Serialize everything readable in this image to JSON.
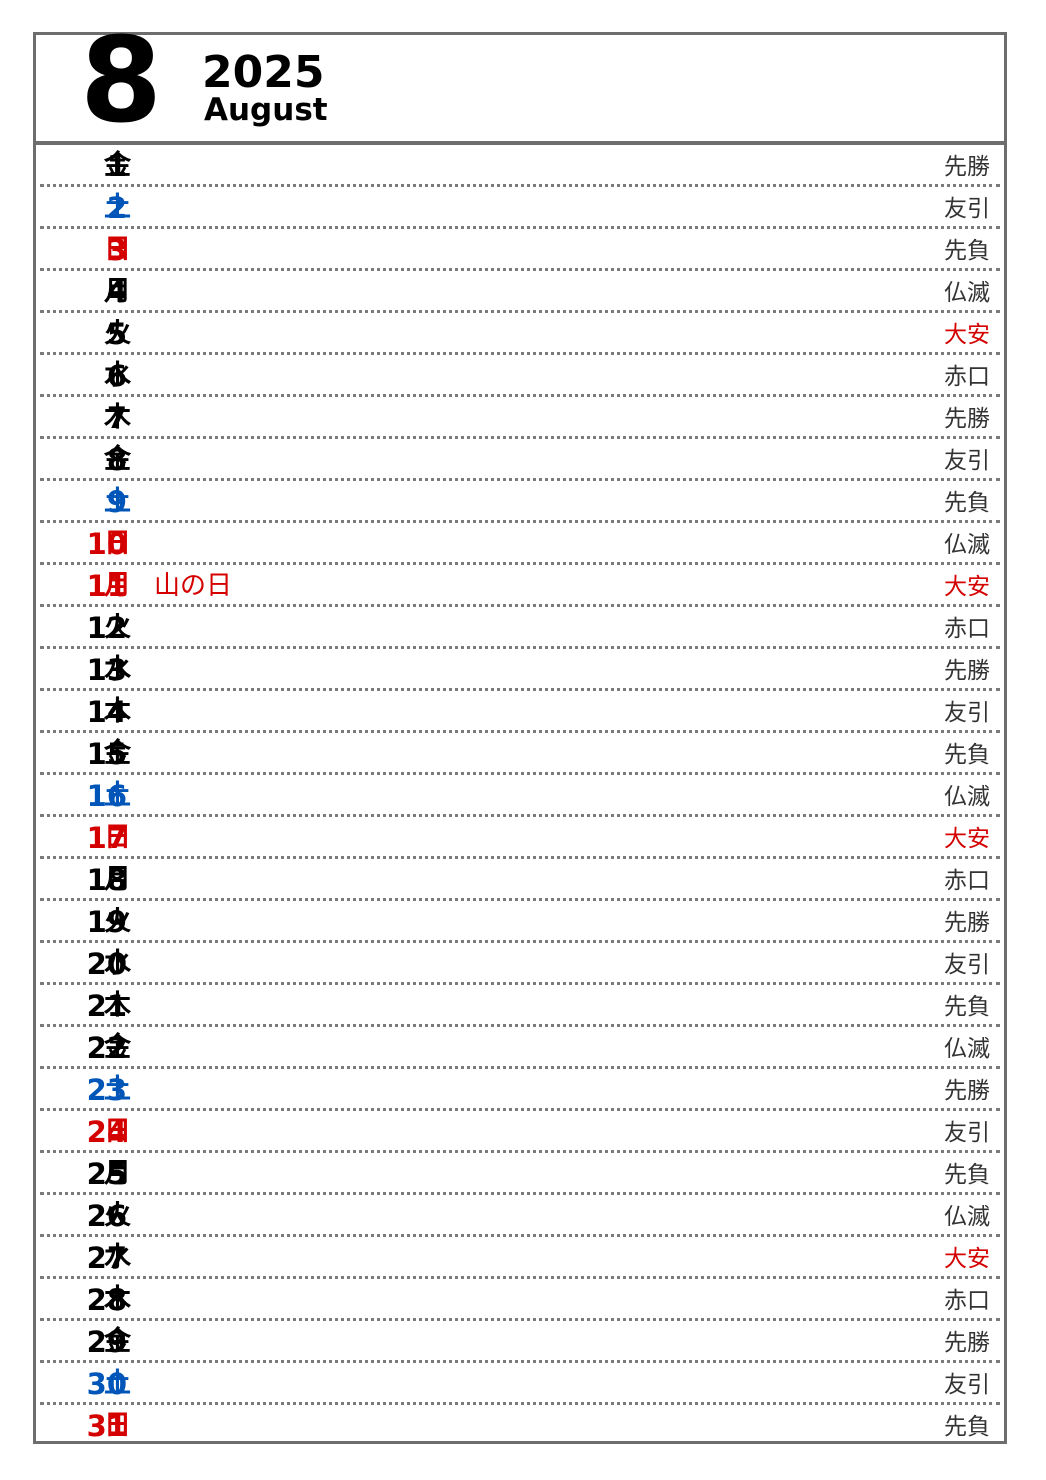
{
  "header": {
    "month_number": "8",
    "year": "2025",
    "month_name": "August"
  },
  "colors": {
    "weekday": "#000000",
    "saturday": "#0055b8",
    "sunday_holiday": "#d40000",
    "taian": "#d40000",
    "rokuyo": "#333333"
  },
  "days": [
    {
      "day": "1",
      "weekday": "金",
      "holiday": "",
      "rokuyo": "先勝",
      "type": "weekday"
    },
    {
      "day": "2",
      "weekday": "土",
      "holiday": "",
      "rokuyo": "友引",
      "type": "saturday"
    },
    {
      "day": "3",
      "weekday": "日",
      "holiday": "",
      "rokuyo": "先負",
      "type": "sunday"
    },
    {
      "day": "4",
      "weekday": "月",
      "holiday": "",
      "rokuyo": "仏滅",
      "type": "weekday"
    },
    {
      "day": "5",
      "weekday": "火",
      "holiday": "",
      "rokuyo": "大安",
      "type": "weekday"
    },
    {
      "day": "6",
      "weekday": "水",
      "holiday": "",
      "rokuyo": "赤口",
      "type": "weekday"
    },
    {
      "day": "7",
      "weekday": "木",
      "holiday": "",
      "rokuyo": "先勝",
      "type": "weekday"
    },
    {
      "day": "8",
      "weekday": "金",
      "holiday": "",
      "rokuyo": "友引",
      "type": "weekday"
    },
    {
      "day": "9",
      "weekday": "土",
      "holiday": "",
      "rokuyo": "先負",
      "type": "saturday"
    },
    {
      "day": "10",
      "weekday": "日",
      "holiday": "",
      "rokuyo": "仏滅",
      "type": "sunday"
    },
    {
      "day": "11",
      "weekday": "月",
      "holiday": "山の日",
      "rokuyo": "大安",
      "type": "holiday"
    },
    {
      "day": "12",
      "weekday": "火",
      "holiday": "",
      "rokuyo": "赤口",
      "type": "weekday"
    },
    {
      "day": "13",
      "weekday": "水",
      "holiday": "",
      "rokuyo": "先勝",
      "type": "weekday"
    },
    {
      "day": "14",
      "weekday": "木",
      "holiday": "",
      "rokuyo": "友引",
      "type": "weekday"
    },
    {
      "day": "15",
      "weekday": "金",
      "holiday": "",
      "rokuyo": "先負",
      "type": "weekday"
    },
    {
      "day": "16",
      "weekday": "土",
      "holiday": "",
      "rokuyo": "仏滅",
      "type": "saturday"
    },
    {
      "day": "17",
      "weekday": "日",
      "holiday": "",
      "rokuyo": "大安",
      "type": "sunday"
    },
    {
      "day": "18",
      "weekday": "月",
      "holiday": "",
      "rokuyo": "赤口",
      "type": "weekday"
    },
    {
      "day": "19",
      "weekday": "火",
      "holiday": "",
      "rokuyo": "先勝",
      "type": "weekday"
    },
    {
      "day": "20",
      "weekday": "水",
      "holiday": "",
      "rokuyo": "友引",
      "type": "weekday"
    },
    {
      "day": "21",
      "weekday": "木",
      "holiday": "",
      "rokuyo": "先負",
      "type": "weekday"
    },
    {
      "day": "22",
      "weekday": "金",
      "holiday": "",
      "rokuyo": "仏滅",
      "type": "weekday"
    },
    {
      "day": "23",
      "weekday": "土",
      "holiday": "",
      "rokuyo": "先勝",
      "type": "saturday"
    },
    {
      "day": "24",
      "weekday": "日",
      "holiday": "",
      "rokuyo": "友引",
      "type": "sunday"
    },
    {
      "day": "25",
      "weekday": "月",
      "holiday": "",
      "rokuyo": "先負",
      "type": "weekday"
    },
    {
      "day": "26",
      "weekday": "火",
      "holiday": "",
      "rokuyo": "仏滅",
      "type": "weekday"
    },
    {
      "day": "27",
      "weekday": "水",
      "holiday": "",
      "rokuyo": "大安",
      "type": "weekday"
    },
    {
      "day": "28",
      "weekday": "木",
      "holiday": "",
      "rokuyo": "赤口",
      "type": "weekday"
    },
    {
      "day": "29",
      "weekday": "金",
      "holiday": "",
      "rokuyo": "先勝",
      "type": "weekday"
    },
    {
      "day": "30",
      "weekday": "土",
      "holiday": "",
      "rokuyo": "友引",
      "type": "saturday"
    },
    {
      "day": "31",
      "weekday": "日",
      "holiday": "",
      "rokuyo": "先負",
      "type": "sunday"
    }
  ]
}
